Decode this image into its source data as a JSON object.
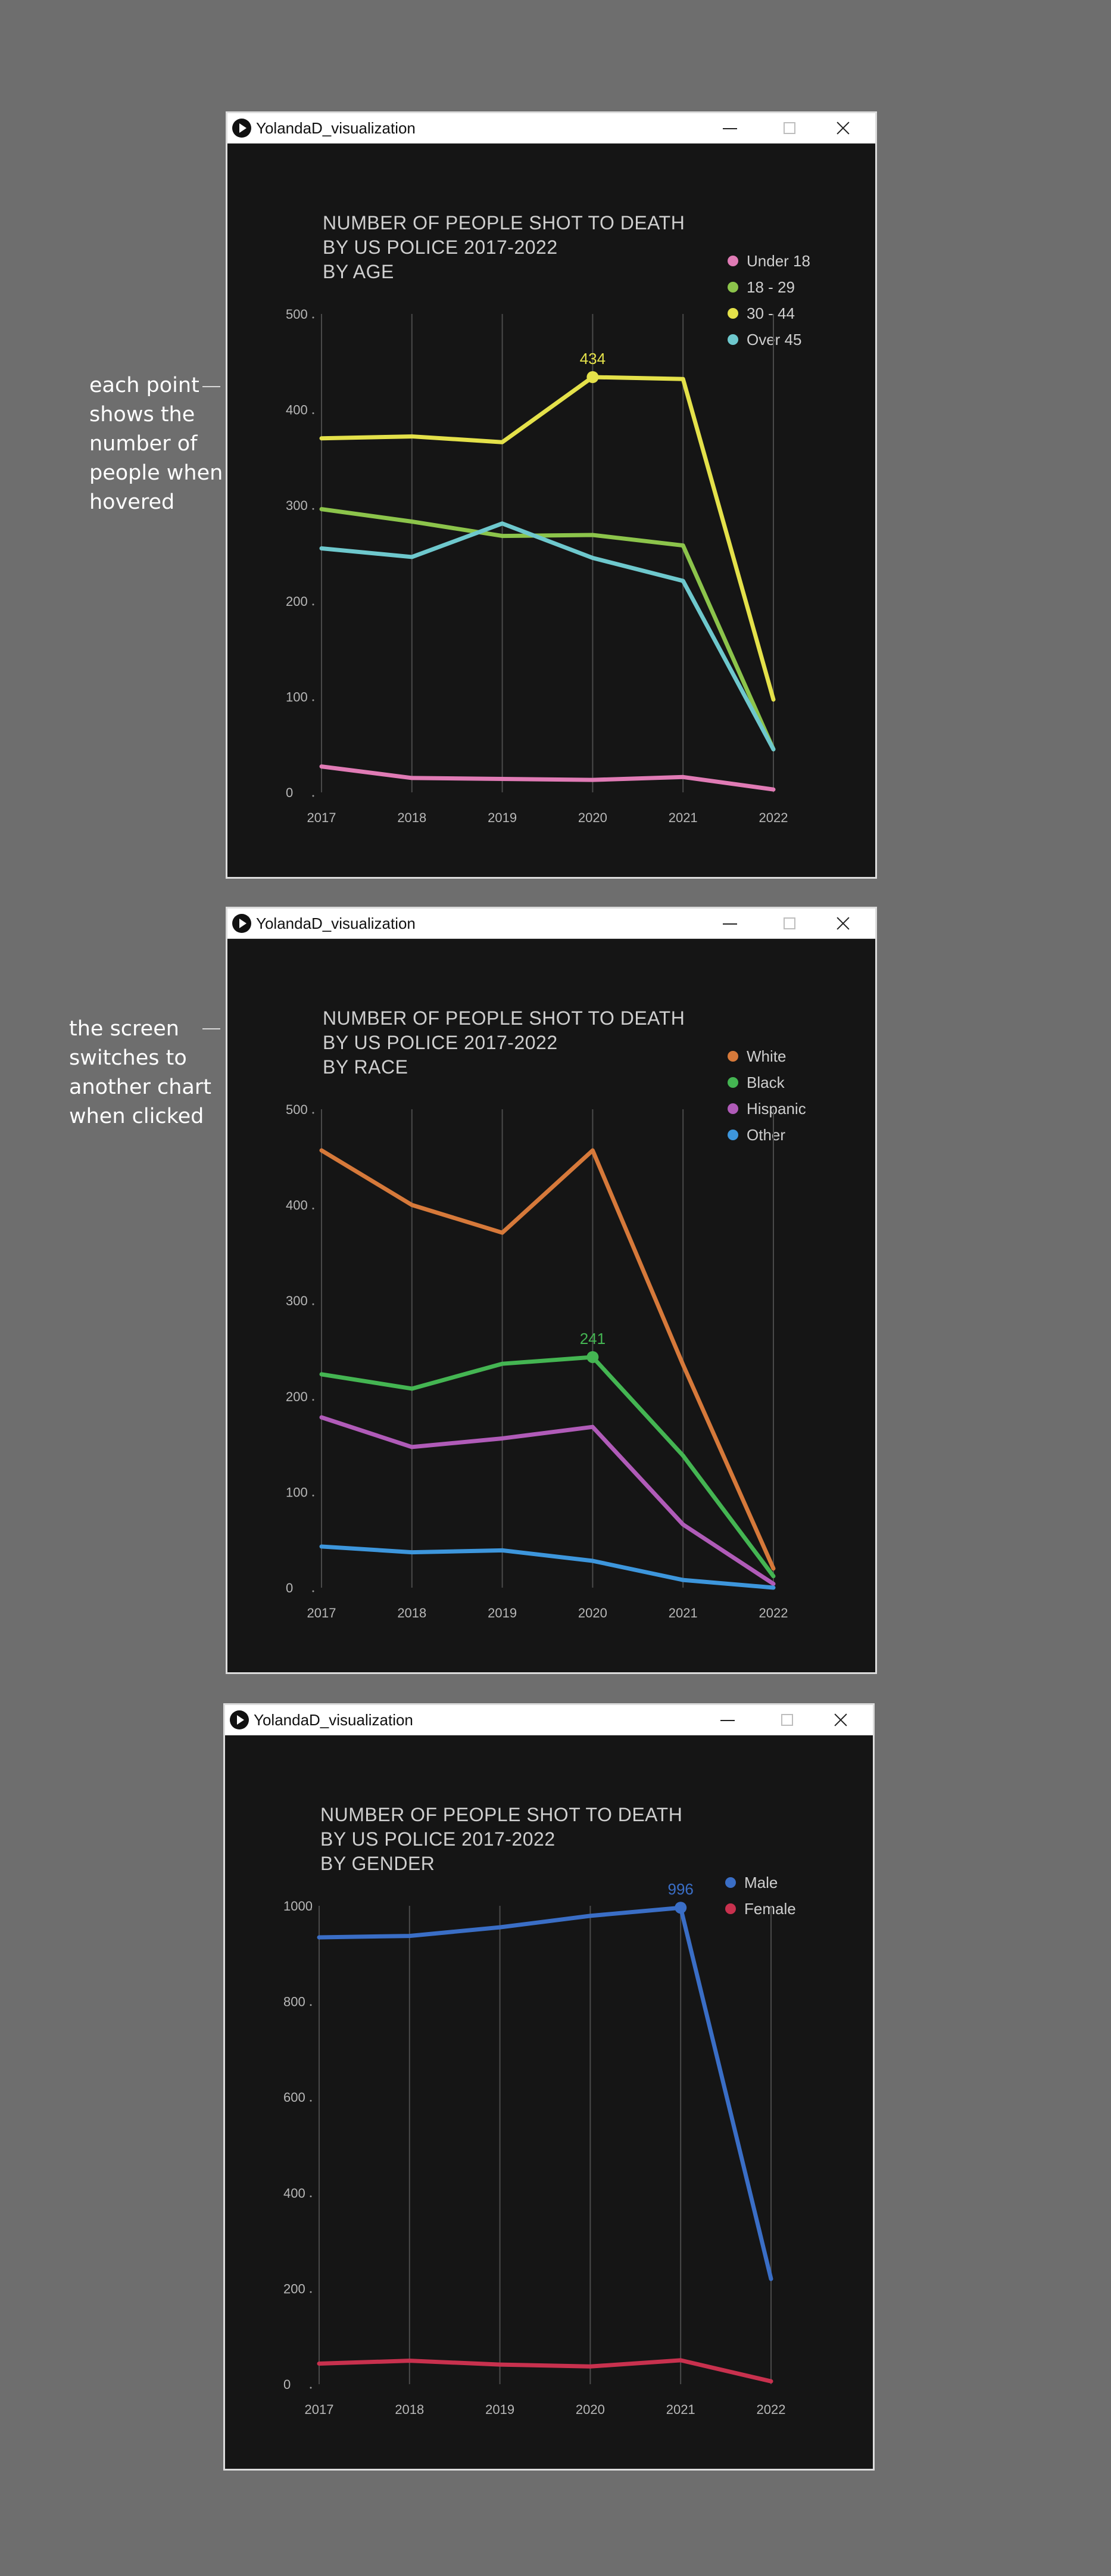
{
  "annotations": [
    {
      "text": "each point\nshows the\nnumber of\npeople when\nhovered"
    },
    {
      "text": "the screen\nswitches to\nanother chart\nwhen clicked"
    }
  ],
  "windows": [
    {
      "title": "YolandaD_visualization",
      "chart_title_lines": [
        "NUMBER OF PEOPLE SHOT TO DEATH",
        "BY US POLICE 2017-2022",
        "BY AGE"
      ],
      "legend": [
        {
          "label": "Under 18",
          "color": "#e07bb5"
        },
        {
          "label": "18 - 29",
          "color": "#8cc44b"
        },
        {
          "label": "30 - 44",
          "color": "#e4e14a"
        },
        {
          "label": "Over 45",
          "color": "#6ec8cd"
        }
      ]
    },
    {
      "title": "YolandaD_visualization",
      "chart_title_lines": [
        "NUMBER OF PEOPLE SHOT TO DEATH",
        "BY US POLICE 2017-2022",
        "BY RACE"
      ],
      "legend": [
        {
          "label": "White",
          "color": "#d6793a"
        },
        {
          "label": "Black",
          "color": "#44b552"
        },
        {
          "label": "Hispanic",
          "color": "#b05bb8"
        },
        {
          "label": "Other",
          "color": "#3d96dc"
        }
      ]
    },
    {
      "title": "YolandaD_visualization",
      "chart_title_lines": [
        "NUMBER OF PEOPLE SHOT TO DEATH",
        "BY US POLICE 2017-2022",
        "BY GENDER"
      ],
      "legend": [
        {
          "label": "Male",
          "color": "#3a6ec6"
        },
        {
          "label": "Female",
          "color": "#c8314e"
        }
      ]
    }
  ],
  "chart_data": [
    {
      "type": "line",
      "title": "NUMBER OF PEOPLE SHOT TO DEATH BY US POLICE 2017-2022 BY AGE",
      "categories": [
        "2017",
        "2018",
        "2019",
        "2020",
        "2021",
        "2022"
      ],
      "ylim": [
        0,
        500
      ],
      "yticks": [
        0,
        100,
        200,
        300,
        400,
        500
      ],
      "grid": "vertical",
      "legend_position": "top-right",
      "series": [
        {
          "name": "Under 18",
          "color": "#e07bb5",
          "values": [
            27,
            15,
            14,
            13,
            16,
            3
          ]
        },
        {
          "name": "18 - 29",
          "color": "#8cc44b",
          "values": [
            296,
            283,
            268,
            269,
            258,
            45
          ]
        },
        {
          "name": "30 - 44",
          "color": "#e4e14a",
          "values": [
            370,
            372,
            366,
            434,
            432,
            97
          ]
        },
        {
          "name": "Over 45",
          "color": "#6ec8cd",
          "values": [
            255,
            246,
            281,
            245,
            221,
            45
          ]
        }
      ],
      "highlight": {
        "series": 2,
        "index": 3,
        "label": "434"
      }
    },
    {
      "type": "line",
      "title": "NUMBER OF PEOPLE SHOT TO DEATH BY US POLICE 2017-2022 BY RACE",
      "categories": [
        "2017",
        "2018",
        "2019",
        "2020",
        "2021",
        "2022"
      ],
      "ylim": [
        0,
        500
      ],
      "yticks": [
        0,
        100,
        200,
        300,
        400,
        500
      ],
      "grid": "vertical",
      "legend_position": "top-right",
      "series": [
        {
          "name": "White",
          "color": "#d6793a",
          "values": [
            457,
            400,
            371,
            457,
            233,
            20
          ]
        },
        {
          "name": "Black",
          "color": "#44b552",
          "values": [
            223,
            208,
            234,
            241,
            138,
            12
          ]
        },
        {
          "name": "Hispanic",
          "color": "#b05bb8",
          "values": [
            178,
            147,
            156,
            168,
            66,
            4
          ]
        },
        {
          "name": "Other",
          "color": "#3d96dc",
          "values": [
            43,
            37,
            39,
            28,
            8,
            0
          ]
        }
      ],
      "highlight": {
        "series": 1,
        "index": 3,
        "label": "241"
      }
    },
    {
      "type": "line",
      "title": "NUMBER OF PEOPLE SHOT TO DEATH BY US POLICE 2017-2022 BY GENDER",
      "categories": [
        "2017",
        "2018",
        "2019",
        "2020",
        "2021",
        "2022"
      ],
      "ylim": [
        0,
        1000
      ],
      "yticks": [
        0,
        200,
        400,
        600,
        800,
        1000
      ],
      "grid": "vertical",
      "legend_position": "top-right",
      "series": [
        {
          "name": "Male",
          "color": "#3a6ec6",
          "values": [
            934,
            937,
            955,
            979,
            996,
            220
          ]
        },
        {
          "name": "Female",
          "color": "#c8314e",
          "values": [
            43,
            49,
            41,
            37,
            50,
            6
          ]
        }
      ],
      "highlight": {
        "series": 0,
        "index": 4,
        "label": "996"
      }
    }
  ]
}
